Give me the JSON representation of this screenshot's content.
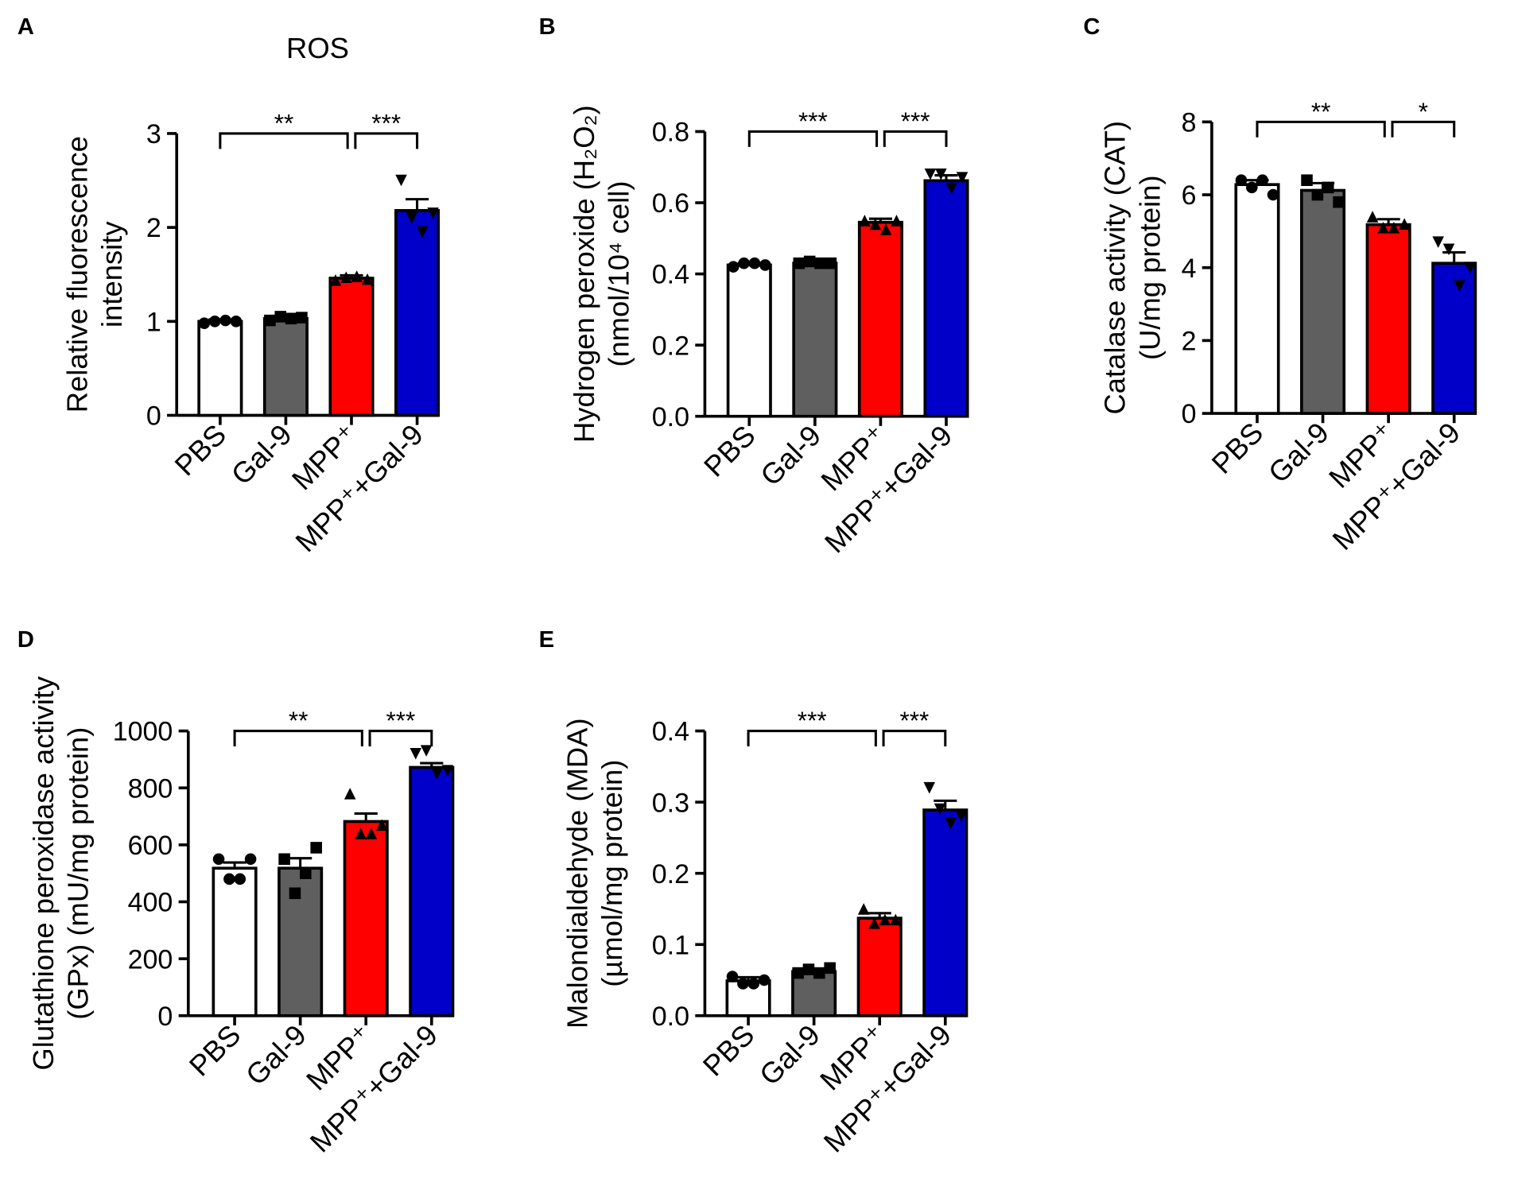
{
  "chart_data": [
    {
      "type": "bar",
      "panel": "A",
      "title": "ROS",
      "ylabel": [
        "Relative fluorescence",
        "intensity"
      ],
      "categories": [
        "PBS",
        "Gal-9",
        "MPP⁺",
        "MPP⁺+Gal-9"
      ],
      "colors": [
        "#ffffff",
        "#5f5f5f",
        "#ff0000",
        "#0000c8"
      ],
      "markers": [
        "circle",
        "square",
        "triangle-up",
        "triangle-down"
      ],
      "values": [
        1.0,
        1.03,
        1.46,
        2.18
      ],
      "errors": [
        0.02,
        0.03,
        0.03,
        0.12
      ],
      "points": [
        [
          0.98,
          1.0,
          1.01,
          1.0
        ],
        [
          1.01,
          1.05,
          1.03,
          1.04
        ],
        [
          1.44,
          1.47,
          1.48,
          1.45
        ],
        [
          2.5,
          2.1,
          1.95,
          2.15
        ]
      ],
      "ylim": [
        0,
        3
      ],
      "yticks": [
        0,
        1,
        2,
        3
      ],
      "annotations": [
        {
          "text": "**",
          "categories": [
            0,
            2
          ]
        },
        {
          "text": "***",
          "categories": [
            2,
            3
          ]
        }
      ]
    },
    {
      "type": "bar",
      "panel": "B",
      "ylabel": [
        "Hydrogen peroxide (H₂O₂)",
        "(nmol/10⁴ cell)"
      ],
      "categories": [
        "PBS",
        "Gal-9",
        "MPP⁺",
        "MPP⁺+Gal-9"
      ],
      "colors": [
        "#ffffff",
        "#5f5f5f",
        "#ff0000",
        "#0000c8"
      ],
      "markers": [
        "circle",
        "square",
        "triangle-up",
        "triangle-down"
      ],
      "values": [
        0.425,
        0.43,
        0.545,
        0.662
      ],
      "errors": [
        0.005,
        0.005,
        0.01,
        0.015
      ],
      "points": [
        [
          0.42,
          0.43,
          0.43,
          0.425
        ],
        [
          0.43,
          0.435,
          0.43,
          0.43
        ],
        [
          0.55,
          0.54,
          0.525,
          0.55
        ],
        [
          0.68,
          0.68,
          0.64,
          0.67
        ]
      ],
      "ylim": [
        0,
        0.8
      ],
      "yticks": [
        {
          "value": 0,
          "label": "0.0"
        },
        0.2,
        0.4,
        0.6,
        0.8
      ],
      "annotations": [
        {
          "text": "***",
          "categories": [
            0,
            2
          ]
        },
        {
          "text": "***",
          "categories": [
            2,
            3
          ]
        }
      ]
    },
    {
      "type": "bar",
      "panel": "C",
      "ylabel": [
        "Catalase activity (CAT)",
        "(U/mg protein)"
      ],
      "categories": [
        "PBS",
        "Gal-9",
        "MPP⁺",
        "MPP⁺+Gal-9"
      ],
      "colors": [
        "#ffffff",
        "#5f5f5f",
        "#ff0000",
        "#0000c8"
      ],
      "markers": [
        "circle",
        "square",
        "triangle-up",
        "triangle-down"
      ],
      "values": [
        6.28,
        6.12,
        5.18,
        4.12
      ],
      "errors": [
        0.12,
        0.2,
        0.15,
        0.3
      ],
      "points": [
        [
          6.4,
          6.2,
          6.4,
          6.0
        ],
        [
          6.4,
          6.0,
          6.2,
          5.8
        ],
        [
          5.4,
          5.1,
          5.1,
          5.2
        ],
        [
          4.7,
          4.5,
          3.5,
          4.0
        ]
      ],
      "ylim": [
        0,
        8
      ],
      "yticks": [
        0,
        2,
        4,
        6,
        8
      ],
      "annotations": [
        {
          "text": "**",
          "categories": [
            0,
            2
          ]
        },
        {
          "text": "*",
          "categories": [
            2,
            3
          ]
        }
      ]
    },
    {
      "type": "bar",
      "panel": "D",
      "ylabel": [
        "Glutathione peroxidase activity",
        "(GPx) (mU/mg protein)"
      ],
      "categories": [
        "PBS",
        "Gal-9",
        "MPP⁺",
        "MPP⁺+Gal-9"
      ],
      "colors": [
        "#ffffff",
        "#5f5f5f",
        "#ff0000",
        "#0000c8"
      ],
      "markers": [
        "circle",
        "square",
        "triangle-up",
        "triangle-down"
      ],
      "values": [
        518,
        518,
        682,
        872
      ],
      "errors": [
        20,
        35,
        28,
        15
      ],
      "points": [
        [
          550,
          480,
          480,
          550
        ],
        [
          550,
          430,
          500,
          590
        ],
        [
          780,
          640,
          640,
          670
        ],
        [
          920,
          930,
          850,
          860
        ]
      ],
      "ylim": [
        0,
        1000
      ],
      "yticks": [
        0,
        200,
        400,
        600,
        800,
        1000
      ],
      "annotations": [
        {
          "text": "**",
          "categories": [
            0,
            2
          ]
        },
        {
          "text": "***",
          "categories": [
            2,
            3
          ]
        }
      ]
    },
    {
      "type": "bar",
      "panel": "E",
      "ylabel": [
        "Malondialdehyde (MDA)",
        "(µmol/mg protein)"
      ],
      "categories": [
        "PBS",
        "Gal-9",
        "MPP⁺",
        "MPP⁺+Gal-9"
      ],
      "colors": [
        "#ffffff",
        "#5f5f5f",
        "#ff0000",
        "#0000c8"
      ],
      "markers": [
        "circle",
        "square",
        "triangle-up",
        "triangle-down"
      ],
      "values": [
        0.049,
        0.062,
        0.137,
        0.289
      ],
      "errors": [
        0.005,
        0.003,
        0.007,
        0.013
      ],
      "points": [
        [
          0.055,
          0.045,
          0.045,
          0.05
        ],
        [
          0.06,
          0.065,
          0.06,
          0.067
        ],
        [
          0.15,
          0.13,
          0.135,
          0.135
        ],
        [
          0.32,
          0.29,
          0.27,
          0.28
        ]
      ],
      "ylim": [
        0,
        0.4
      ],
      "yticks": [
        {
          "value": 0,
          "label": "0.0"
        },
        0.1,
        0.2,
        0.3,
        0.4
      ],
      "annotations": [
        {
          "text": "***",
          "categories": [
            0,
            2
          ]
        },
        {
          "text": "***",
          "categories": [
            2,
            3
          ]
        }
      ]
    }
  ]
}
